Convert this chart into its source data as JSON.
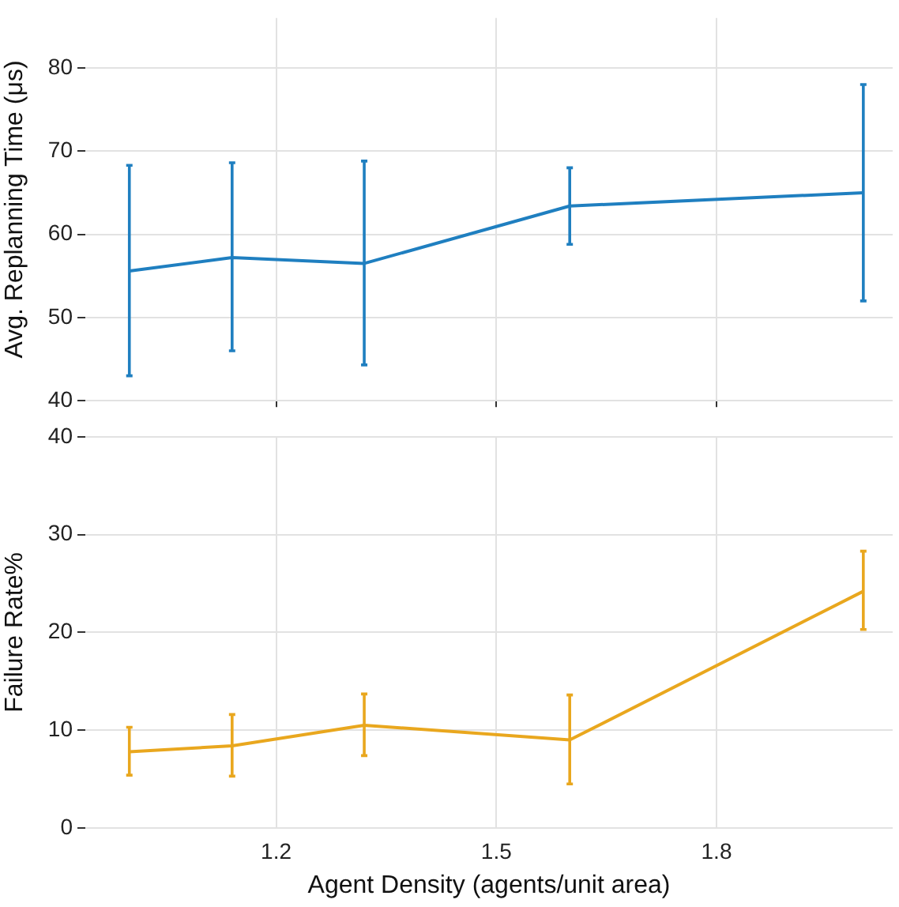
{
  "chart_data": [
    {
      "type": "line",
      "ylabel": "Avg. Replanning Time (μs)",
      "x": [
        1.0,
        1.14,
        1.32,
        1.6,
        2.0
      ],
      "xlim": [
        0.94,
        2.04
      ],
      "xticks": [
        1.2,
        1.5,
        1.8
      ],
      "ylim": [
        40,
        86
      ],
      "yticks": [
        40,
        50,
        60,
        70,
        80
      ],
      "tick_labels": "y",
      "grid": true,
      "legend": false,
      "marker": "none",
      "series": [
        {
          "color": "#1f7fc0",
          "values": [
            55.6,
            57.2,
            56.5,
            63.4,
            65.0
          ],
          "errors": [
            [
              43,
              68.3
            ],
            [
              46,
              68.6
            ],
            [
              44.3,
              68.8
            ],
            [
              58.8,
              68
            ],
            [
              52,
              78
            ]
          ]
        }
      ]
    },
    {
      "type": "line",
      "xlabel": "Agent Density (agents/unit area)",
      "ylabel": "Failure Rate%",
      "x": [
        1.0,
        1.14,
        1.32,
        1.6,
        2.0
      ],
      "xlim": [
        0.94,
        2.04
      ],
      "xticks": [
        1.2,
        1.5,
        1.8
      ],
      "ylim": [
        0,
        40
      ],
      "yticks": [
        0,
        10,
        20,
        30,
        40
      ],
      "grid": true,
      "legend": false,
      "marker": "none",
      "series": [
        {
          "color": "#e9a71e",
          "values": [
            7.8,
            8.4,
            10.5,
            9.0,
            24.2
          ],
          "errors": [
            [
              5.4,
              10.3
            ],
            [
              5.3,
              11.6
            ],
            [
              7.4,
              13.7
            ],
            [
              4.5,
              13.6
            ],
            [
              20.3,
              28.3
            ]
          ]
        }
      ]
    }
  ]
}
